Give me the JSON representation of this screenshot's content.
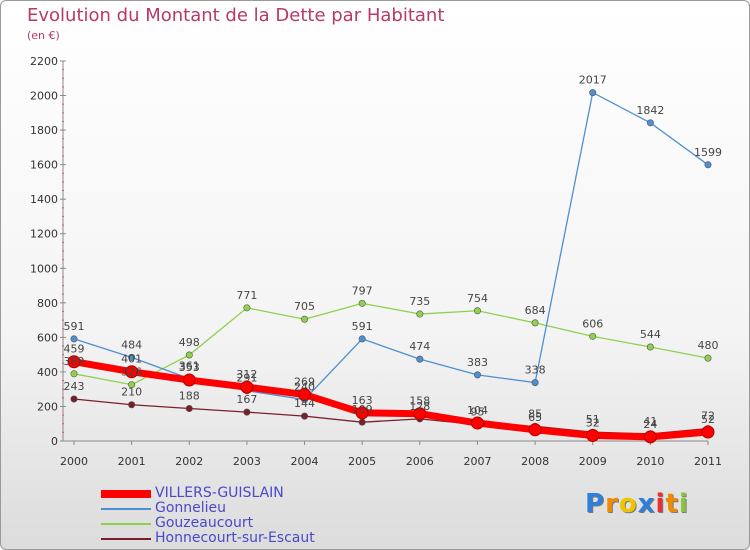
{
  "header": {
    "title": "Evolution du Montant de la Dette par Habitant",
    "subtitle": "(en €)"
  },
  "chart_data": {
    "type": "line",
    "title": "Evolution du Montant de la Dette par Habitant",
    "ylabel": "(en €)",
    "xlabel": "",
    "categories": [
      "2000",
      "2001",
      "2002",
      "2003",
      "2004",
      "2005",
      "2006",
      "2007",
      "2008",
      "2009",
      "2010",
      "2011"
    ],
    "ylim": [
      0,
      2200
    ],
    "yticks": [
      0,
      200,
      400,
      600,
      800,
      1000,
      1200,
      1400,
      1600,
      1800,
      2000,
      2200
    ],
    "grid": false,
    "legend_position": "bottom-left",
    "series": [
      {
        "name": "VILLERS-GUISLAIN",
        "color": "#ff0000",
        "values": [
          459,
          401,
          353,
          312,
          269,
          163,
          158,
          104,
          65,
          32,
          24,
          52
        ]
      },
      {
        "name": "Gonnelieu",
        "color": "#4d8fd2",
        "values": [
          591,
          484,
          361,
          291,
          240,
          591,
          474,
          383,
          338,
          2017,
          1842,
          1599
        ]
      },
      {
        "name": "Gouzeaucourt",
        "color": "#8fd14f",
        "values": [
          389,
          326,
          498,
          771,
          705,
          797,
          735,
          754,
          684,
          606,
          544,
          480
        ]
      },
      {
        "name": "Honnecourt-sur-Escaut",
        "color": "#7a1f2a",
        "values": [
          243,
          210,
          188,
          167,
          144,
          109,
          128,
          95,
          85,
          51,
          41,
          72
        ]
      }
    ]
  },
  "logo": {
    "letters": [
      "P",
      "r",
      "o",
      "x",
      "i",
      "t",
      "i"
    ],
    "colors": [
      "#2f7fd8",
      "#f08a00",
      "#f0c400",
      "#2f7fd8",
      "#e83030",
      "#f08a00",
      "#8ac43f"
    ]
  }
}
